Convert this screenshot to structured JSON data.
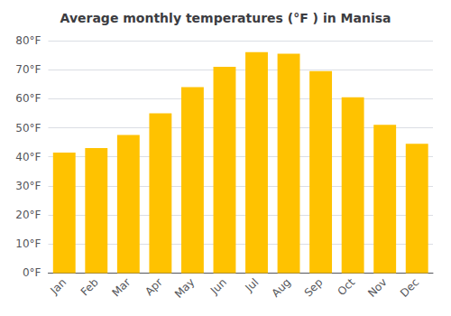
{
  "chart_data": {
    "type": "bar",
    "title": "Average monthly temperatures (°F ) in Manisa",
    "categories": [
      "Jan",
      "Feb",
      "Mar",
      "Apr",
      "May",
      "Jun",
      "Jul",
      "Aug",
      "Sep",
      "Oct",
      "Nov",
      "Dec"
    ],
    "values": [
      41.5,
      43.0,
      47.5,
      55.0,
      64.0,
      71.0,
      76.0,
      75.5,
      69.5,
      60.5,
      51.0,
      44.5
    ],
    "color": "#FFC200",
    "ylim": [
      0,
      80
    ],
    "yticks": [
      {
        "value": 0,
        "label": "0°F"
      },
      {
        "value": 10,
        "label": "10°F"
      },
      {
        "value": 20,
        "label": "20°F"
      },
      {
        "value": 30,
        "label": "30°F"
      },
      {
        "value": 40,
        "label": "40°F"
      },
      {
        "value": 50,
        "label": "50°F"
      },
      {
        "value": 60,
        "label": "60°F"
      },
      {
        "value": 70,
        "label": "70°F"
      },
      {
        "value": 80,
        "label": "80°F"
      }
    ],
    "grid": true
  }
}
